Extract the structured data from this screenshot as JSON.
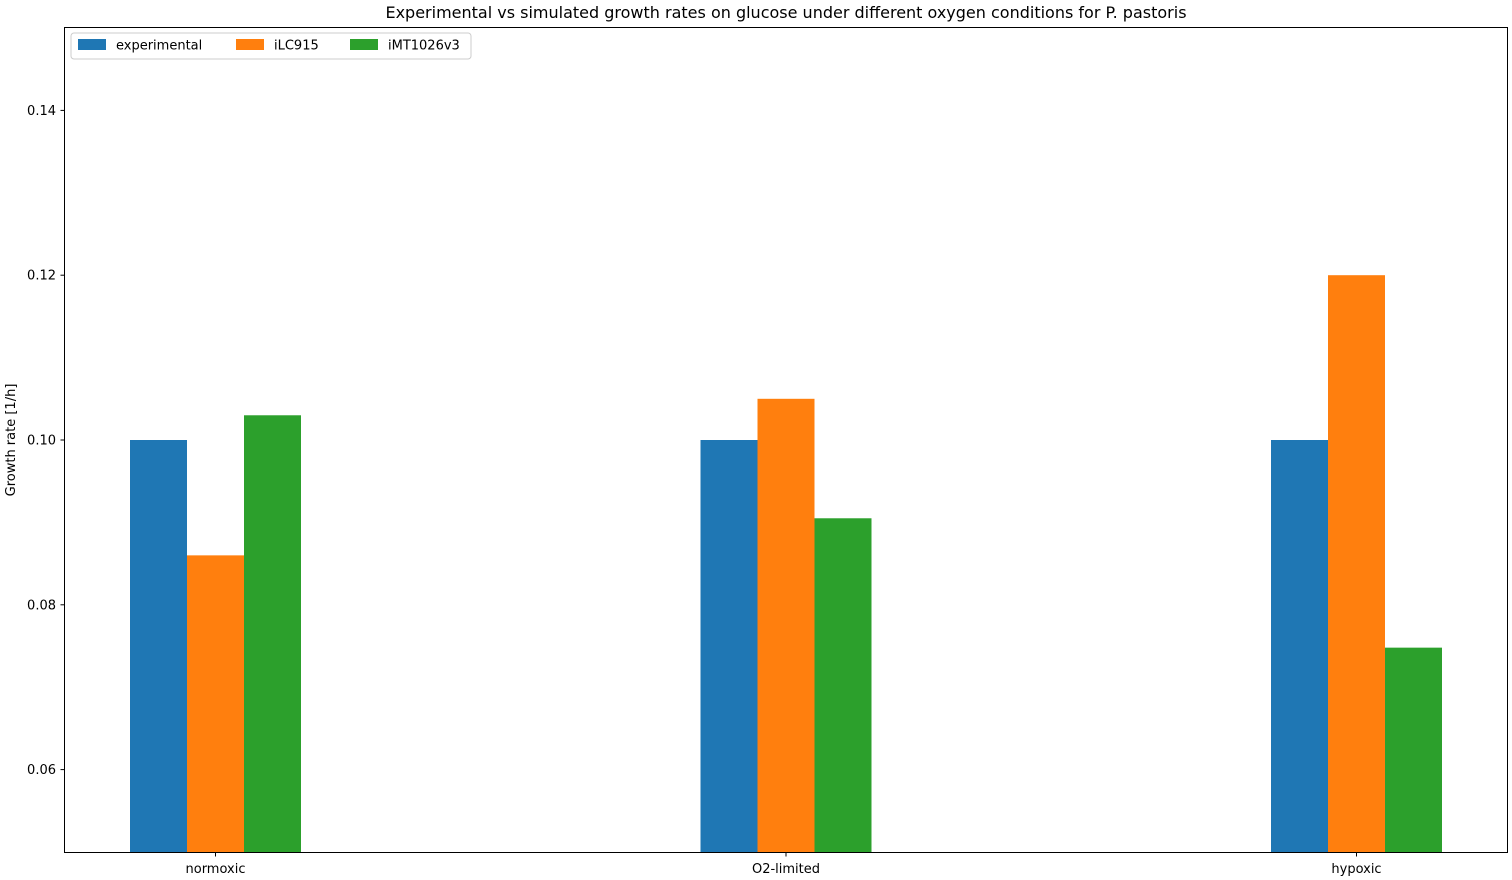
{
  "chart_data": {
    "type": "bar",
    "title": "Experimental vs simulated growth rates on glucose under different oxygen conditions for P. pastoris",
    "xlabel": "",
    "ylabel": "Growth rate [1/h]",
    "categories": [
      "normoxic",
      "O2-limited",
      "hypoxic"
    ],
    "series": [
      {
        "name": "experimental",
        "color": "#1f77b4",
        "values": [
          0.1,
          0.1,
          0.1
        ]
      },
      {
        "name": "iLC915",
        "color": "#ff7f0e",
        "values": [
          0.086,
          0.105,
          0.12
        ]
      },
      {
        "name": "iMT1026v3",
        "color": "#2ca02c",
        "values": [
          0.103,
          0.0905,
          0.0748
        ]
      }
    ],
    "ylim": [
      0.05,
      0.15
    ],
    "yticks": [
      0.06,
      0.08,
      0.1,
      0.12,
      0.14
    ],
    "ytick_labels": [
      "0.06",
      "0.08",
      "0.10",
      "0.12",
      "0.14"
    ],
    "grid": false,
    "legend": {
      "location": "upper-left",
      "columns": 3
    }
  }
}
